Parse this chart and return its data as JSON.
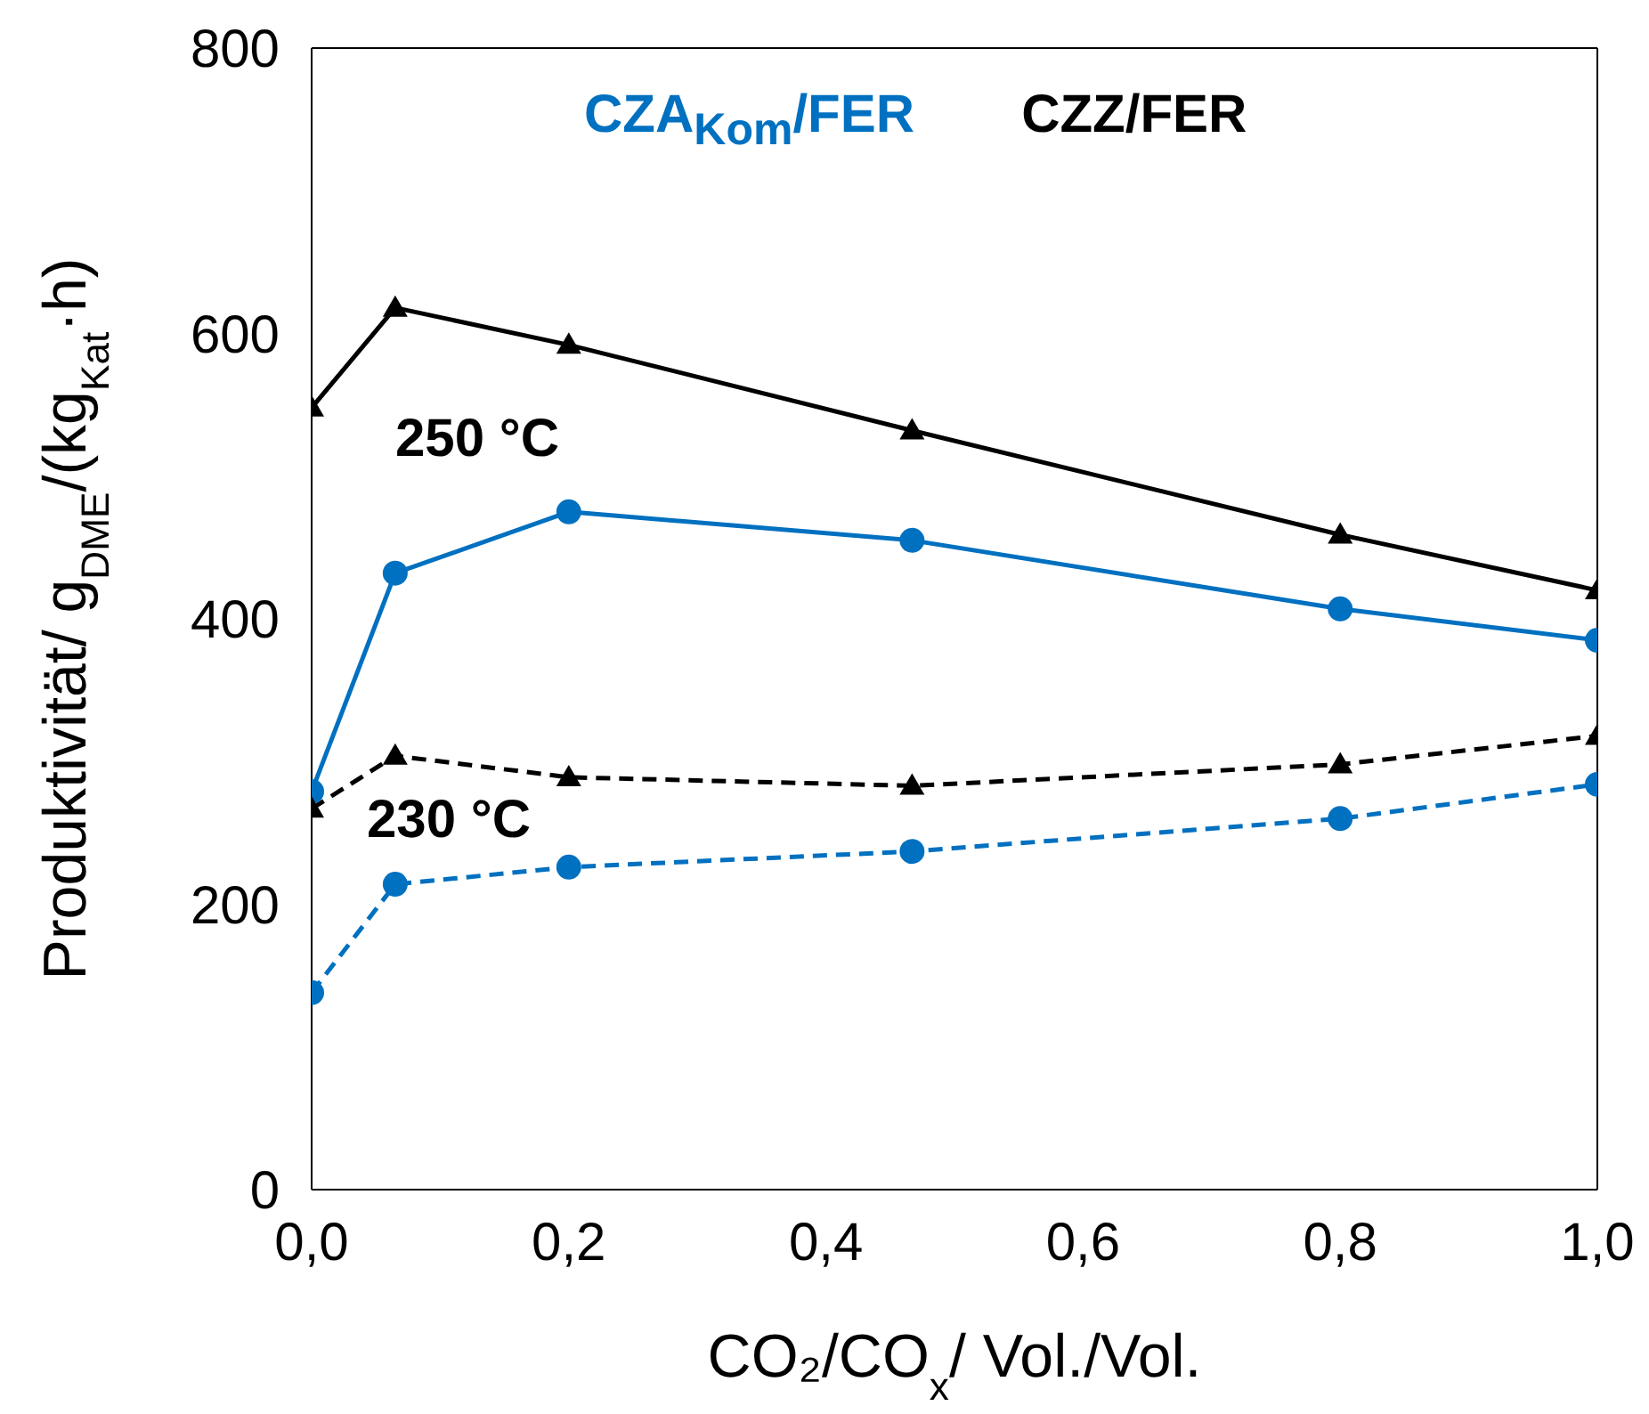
{
  "chart_data": {
    "type": "line",
    "xlabel": "CO₂/CO$_{x}$/ Vol./Vol.",
    "ylabel": "Produktivität/ g$_{DME}$/(kg$_{Kat}$·h)",
    "x": [
      0,
      0.065,
      0.2,
      0.467,
      0.8,
      1.0
    ],
    "series": [
      {
        "name": "CZA$_{Kom}$/FER",
        "color": "#0070c0",
        "marker": "circle",
        "line_style": "solid",
        "values": [
          279,
          432,
          475,
          455,
          407,
          385
        ]
      },
      {
        "name": "CZZ/FER",
        "color": "#000000",
        "marker": "triangle",
        "line_style": "solid",
        "values": [
          548,
          618,
          592,
          532,
          459,
          420
        ]
      },
      {
        "color": "#000000",
        "marker": "triangle",
        "line_style": "dashed",
        "values": [
          267,
          304,
          289,
          283,
          298,
          318
        ]
      },
      {
        "color": "#0070c0",
        "marker": "circle",
        "line_style": "dashed",
        "values": [
          138,
          214,
          226,
          237,
          260,
          284
        ]
      }
    ],
    "xlim": [
      0,
      1
    ],
    "xticks": [
      {
        "value": 0,
        "label": "0,0"
      },
      {
        "value": 0.2,
        "label": "0,2"
      },
      {
        "value": 0.4,
        "label": "0,4"
      },
      {
        "value": 0.6,
        "label": "0,6"
      },
      {
        "value": 0.8,
        "label": "0,8"
      },
      {
        "value": 1,
        "label": "1,0"
      }
    ],
    "ylim": [
      0,
      800
    ],
    "yticks": [
      0,
      200,
      400,
      600,
      800
    ],
    "annotations": [
      "250 °C",
      "230 °C"
    ],
    "legend": "top",
    "grid": false
  }
}
